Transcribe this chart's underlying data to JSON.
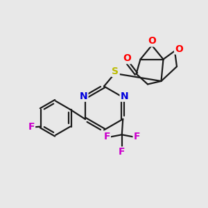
{
  "background_color": "#e8e8e8",
  "bond_color": "#1a1a1a",
  "atom_colors": {
    "O": "#ff0000",
    "N": "#0000dd",
    "S": "#bbbb00",
    "F": "#cc00cc"
  },
  "bond_width": 1.6,
  "font_size": 10
}
